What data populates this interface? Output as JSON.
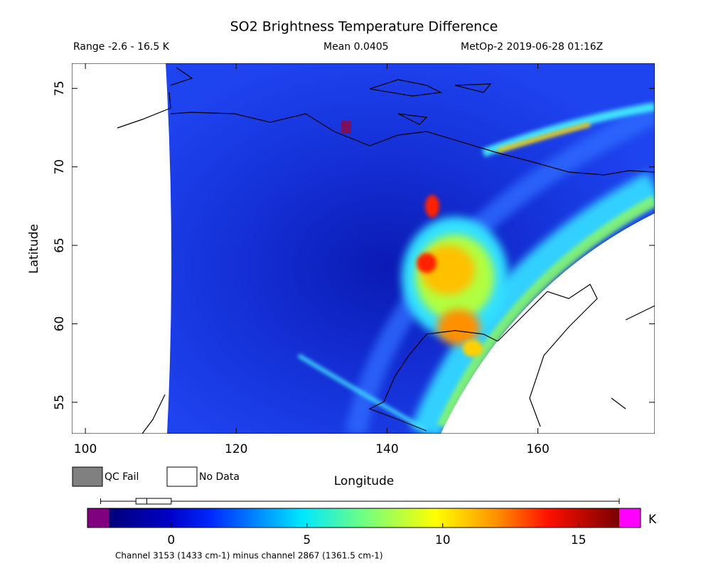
{
  "header": {
    "title": "SO2 Brightness Temperature Difference",
    "range": "Range -2.6 - 16.5 K",
    "mean": "Mean 0.0405",
    "source": "MetOp-2 2019-06-28 01:16Z"
  },
  "map": {
    "xlabel": "Longitude",
    "ylabel": "Latitude",
    "xlim": [
      98.2,
      175.5
    ],
    "xticks": [
      100,
      120,
      140,
      160
    ],
    "ylim": [
      53,
      76.6
    ],
    "yticks": [
      55,
      60,
      65,
      70,
      75
    ]
  },
  "legend": {
    "qc_fail": "QC Fail",
    "no_data": "No Data"
  },
  "colorbar": {
    "lim": [
      -2.3,
      16.5
    ],
    "ticks": [
      0,
      5,
      10,
      15
    ],
    "unit": "K",
    "boxplot": {
      "min": -2.6,
      "q1": -1.3,
      "median": -0.9,
      "q3": 0,
      "max": 16.5
    }
  },
  "footer": "Channel 3153 (1433 cm-1) minus channel 2867 (1361.5 cm-1)"
}
